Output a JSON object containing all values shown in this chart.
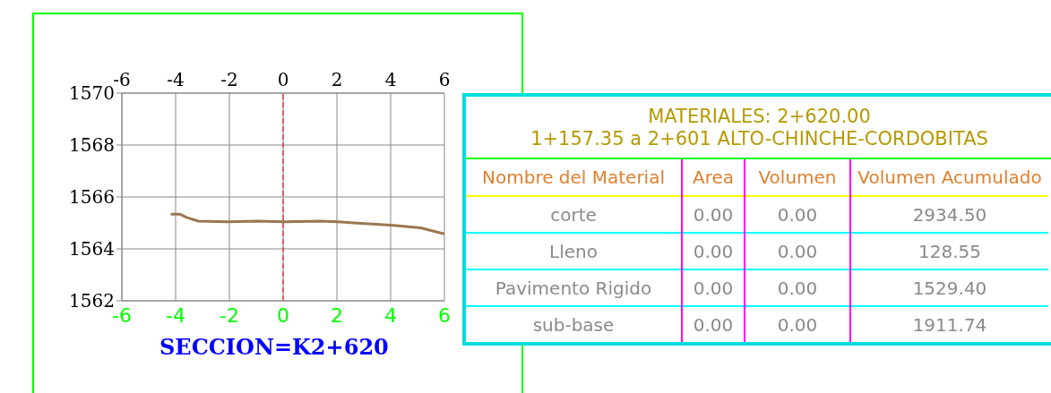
{
  "chart_data": [
    {
      "type": "line",
      "title": "SECCION=K2+620",
      "x": [
        -4.18,
        -3.85,
        -3.59,
        -3.16,
        -2.1,
        -0.94,
        0.05,
        1.37,
        2.03,
        3.02,
        4.02,
        5.11,
        6
      ],
      "series": [
        {
          "color": "#9b7650",
          "values": [
            1565.34,
            1565.34,
            1565.21,
            1565.07,
            1565.04,
            1565.07,
            1565.04,
            1565.07,
            1565.04,
            1564.97,
            1564.91,
            1564.81,
            1564.58
          ]
        }
      ],
      "xlim": [
        -6,
        6
      ],
      "xticks": [
        -6,
        -4,
        -2,
        0,
        2,
        4,
        6
      ],
      "x2lim": [
        -6,
        6
      ],
      "x2ticks": [
        -6,
        -4,
        -2,
        0,
        2,
        4,
        6
      ],
      "ylim": [
        1562,
        1570
      ],
      "yticks": [
        1562,
        1564,
        1566,
        1568,
        1570
      ],
      "grid": true,
      "marker": "none",
      "line_style": "solid",
      "ref_lines": [
        {
          "axis": "x",
          "value": 0,
          "color": "#ff0000",
          "line_style": "dashed"
        }
      ]
    },
    {
      "type": "other",
      "title": "MATERIALES:  2+620.00",
      "subtitle": "1+157.35  a  2+601   ALTO-CHINCHE-CORDOBITAS",
      "xlabel": "Nombre  del  Material",
      "categories": [
        "corte",
        "Lleno",
        "Pavimento  Rigido",
        "sub-base"
      ],
      "series": [
        {
          "name": "Area",
          "values": [
            0,
            0,
            0,
            0
          ],
          "value_labels": [
            "0.00",
            "0.00",
            "0.00",
            "0.00"
          ]
        },
        {
          "name": "Volumen",
          "values": [
            0,
            0,
            0,
            0
          ],
          "value_labels": [
            "0.00",
            "0.00",
            "0.00",
            "0.00"
          ]
        },
        {
          "name": "Volumen  Acumulado",
          "values": [
            2934.5,
            128.55,
            1529.4,
            1911.74
          ],
          "value_labels": [
            "2934.50",
            "128.55",
            "1529.40",
            "1911.74"
          ]
        }
      ]
    }
  ]
}
